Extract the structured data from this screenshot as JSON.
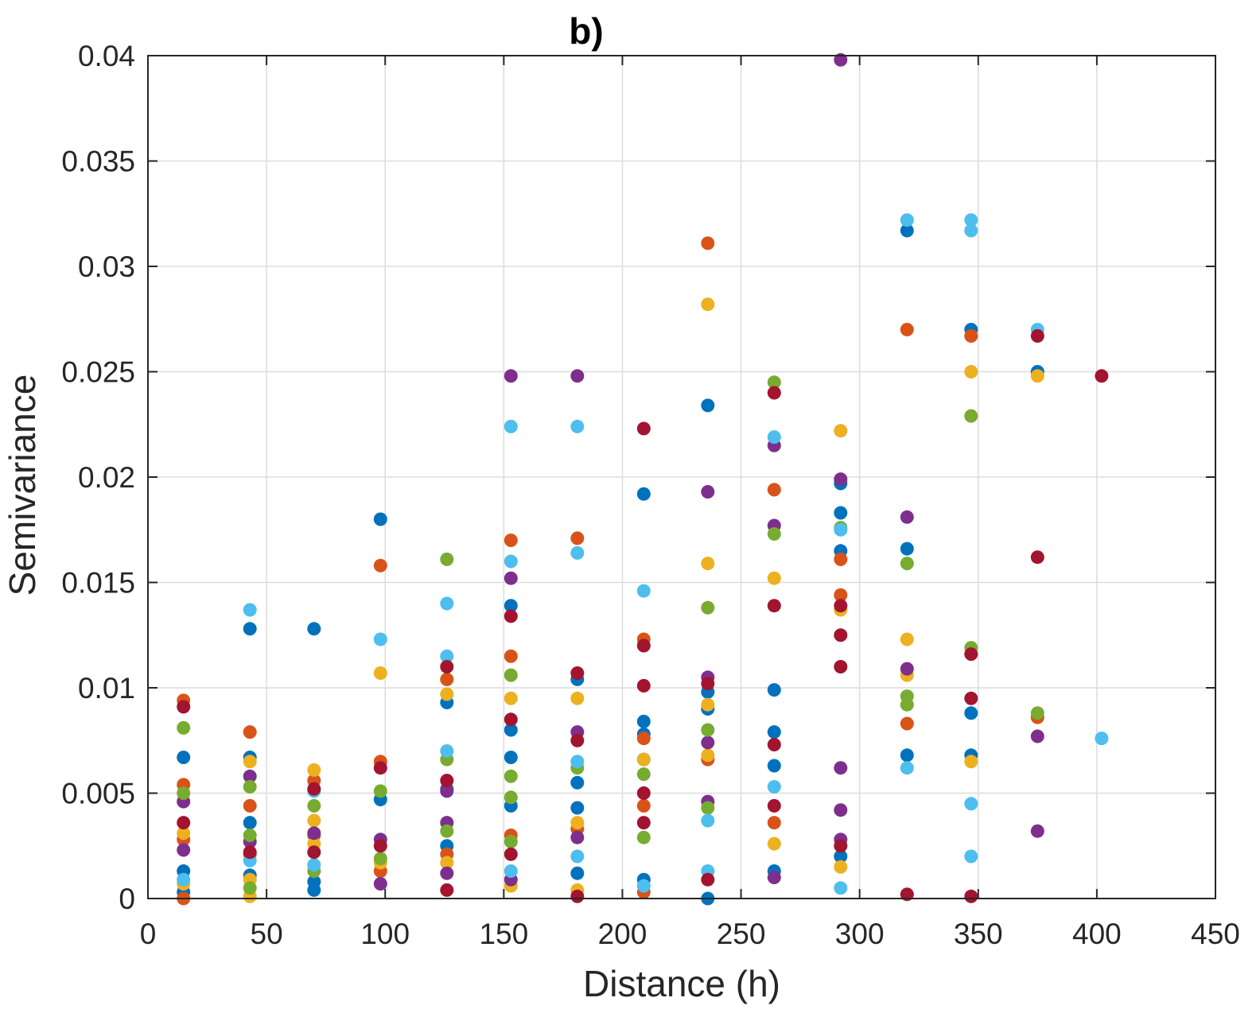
{
  "chart_data": {
    "type": "scatter",
    "title": "b)",
    "xlabel": "Distance (h)",
    "ylabel": "Semivariance",
    "xlim": [
      0,
      450
    ],
    "ylim": [
      0,
      0.04
    ],
    "xticks": [
      0,
      50,
      100,
      150,
      200,
      250,
      300,
      350,
      400,
      450
    ],
    "yticks": [
      0,
      0.005,
      0.01,
      0.015,
      0.02,
      0.025,
      0.03,
      0.035,
      0.04
    ],
    "xtick_labels": [
      "0",
      "50",
      "100",
      "150",
      "200",
      "250",
      "300",
      "350",
      "400",
      "450"
    ],
    "ytick_labels": [
      "0",
      "0.005",
      "0.01",
      "0.015",
      "0.02",
      "0.025",
      "0.03",
      "0.035",
      "0.04"
    ],
    "grid": true,
    "legend": "none",
    "series": [
      {
        "color": "#0072BD",
        "points": [
          [
            15,
            0.0067
          ],
          [
            15,
            0.0013
          ],
          [
            15,
            0.0003
          ],
          [
            43,
            0.0128
          ],
          [
            43,
            0.0067
          ],
          [
            43,
            0.0036
          ],
          [
            43,
            0.0011
          ],
          [
            70,
            0.0128
          ],
          [
            70,
            0.0008
          ],
          [
            70,
            0.0004
          ],
          [
            98,
            0.018
          ],
          [
            98,
            0.0047
          ],
          [
            126,
            0.0093
          ],
          [
            126,
            0.0052
          ],
          [
            126,
            0.0025
          ],
          [
            153,
            0.0139
          ],
          [
            153,
            0.008
          ],
          [
            153,
            0.0067
          ],
          [
            153,
            0.0044
          ],
          [
            181,
            0.0104
          ],
          [
            181,
            0.0055
          ],
          [
            181,
            0.0043
          ],
          [
            181,
            0.0012
          ],
          [
            209,
            0.0192
          ],
          [
            209,
            0.0084
          ],
          [
            209,
            0.0078
          ],
          [
            209,
            0.0066
          ],
          [
            209,
            0.0009
          ],
          [
            236,
            0.0234
          ],
          [
            236,
            0.0098
          ],
          [
            236,
            0.009
          ],
          [
            236,
            0.0
          ],
          [
            264,
            0.0099
          ],
          [
            264,
            0.0079
          ],
          [
            264,
            0.0063
          ],
          [
            264,
            0.0013
          ],
          [
            292,
            0.0197
          ],
          [
            292,
            0.0183
          ],
          [
            292,
            0.0165
          ],
          [
            292,
            0.002
          ],
          [
            320,
            0.0317
          ],
          [
            320,
            0.0166
          ],
          [
            320,
            0.0068
          ],
          [
            347,
            0.027
          ],
          [
            347,
            0.0088
          ],
          [
            347,
            0.0068
          ],
          [
            375,
            0.025
          ]
        ]
      },
      {
        "color": "#D95319",
        "points": [
          [
            15,
            0.0094
          ],
          [
            15,
            0.0054
          ],
          [
            15,
            0.0028
          ],
          [
            15,
            0.0
          ],
          [
            43,
            0.0079
          ],
          [
            43,
            0.0044
          ],
          [
            43,
            0.0021
          ],
          [
            70,
            0.0056
          ],
          [
            70,
            0.003
          ],
          [
            98,
            0.0158
          ],
          [
            98,
            0.0065
          ],
          [
            98,
            0.0013
          ],
          [
            126,
            0.0104
          ],
          [
            126,
            0.0021
          ],
          [
            153,
            0.017
          ],
          [
            153,
            0.0115
          ],
          [
            153,
            0.003
          ],
          [
            181,
            0.0171
          ],
          [
            181,
            0.0033
          ],
          [
            209,
            0.0123
          ],
          [
            209,
            0.0076
          ],
          [
            209,
            0.0044
          ],
          [
            209,
            0.0003
          ],
          [
            236,
            0.0311
          ],
          [
            236,
            0.0066
          ],
          [
            264,
            0.0194
          ],
          [
            264,
            0.0036
          ],
          [
            292,
            0.0161
          ],
          [
            292,
            0.0144
          ],
          [
            320,
            0.027
          ],
          [
            320,
            0.0083
          ],
          [
            347,
            0.0267
          ],
          [
            375,
            0.0086
          ]
        ]
      },
      {
        "color": "#EDB120",
        "points": [
          [
            15,
            0.0031
          ],
          [
            15,
            0.0007
          ],
          [
            43,
            0.0065
          ],
          [
            43,
            0.0009
          ],
          [
            43,
            0.0001
          ],
          [
            70,
            0.0061
          ],
          [
            70,
            0.0037
          ],
          [
            70,
            0.0026
          ],
          [
            98,
            0.0107
          ],
          [
            98,
            0.0017
          ],
          [
            126,
            0.0097
          ],
          [
            126,
            0.0017
          ],
          [
            153,
            0.0095
          ],
          [
            153,
            0.0006
          ],
          [
            181,
            0.0095
          ],
          [
            181,
            0.0036
          ],
          [
            181,
            0.0004
          ],
          [
            209,
            0.0066
          ],
          [
            236,
            0.0282
          ],
          [
            236,
            0.0159
          ],
          [
            236,
            0.0092
          ],
          [
            236,
            0.0068
          ],
          [
            264,
            0.0152
          ],
          [
            264,
            0.0026
          ],
          [
            292,
            0.0222
          ],
          [
            292,
            0.0137
          ],
          [
            292,
            0.0015
          ],
          [
            320,
            0.0123
          ],
          [
            320,
            0.0106
          ],
          [
            347,
            0.025
          ],
          [
            347,
            0.0065
          ],
          [
            375,
            0.0248
          ]
        ]
      },
      {
        "color": "#7E2F8E",
        "points": [
          [
            15,
            0.0046
          ],
          [
            15,
            0.0023
          ],
          [
            43,
            0.0058
          ],
          [
            43,
            0.0027
          ],
          [
            70,
            0.0031
          ],
          [
            98,
            0.0028
          ],
          [
            98,
            0.0007
          ],
          [
            126,
            0.0051
          ],
          [
            126,
            0.0036
          ],
          [
            126,
            0.0012
          ],
          [
            153,
            0.0248
          ],
          [
            153,
            0.0152
          ],
          [
            153,
            0.0009
          ],
          [
            181,
            0.0248
          ],
          [
            181,
            0.0079
          ],
          [
            181,
            0.0029
          ],
          [
            236,
            0.0193
          ],
          [
            236,
            0.0105
          ],
          [
            236,
            0.0074
          ],
          [
            236,
            0.0046
          ],
          [
            264,
            0.0215
          ],
          [
            264,
            0.0177
          ],
          [
            264,
            0.001
          ],
          [
            292,
            0.0398
          ],
          [
            292,
            0.0199
          ],
          [
            292,
            0.0062
          ],
          [
            292,
            0.0042
          ],
          [
            292,
            0.0028
          ],
          [
            320,
            0.0181
          ],
          [
            320,
            0.0109
          ],
          [
            375,
            0.0077
          ],
          [
            375,
            0.0032
          ]
        ]
      },
      {
        "color": "#77AC30",
        "points": [
          [
            15,
            0.0081
          ],
          [
            15,
            0.005
          ],
          [
            43,
            0.0053
          ],
          [
            43,
            0.003
          ],
          [
            43,
            0.0005
          ],
          [
            70,
            0.0044
          ],
          [
            70,
            0.0013
          ],
          [
            98,
            0.0051
          ],
          [
            98,
            0.0019
          ],
          [
            126,
            0.0161
          ],
          [
            126,
            0.0066
          ],
          [
            126,
            0.0032
          ],
          [
            153,
            0.0106
          ],
          [
            153,
            0.0058
          ],
          [
            153,
            0.0048
          ],
          [
            153,
            0.0027
          ],
          [
            181,
            0.0062
          ],
          [
            209,
            0.0059
          ],
          [
            209,
            0.0029
          ],
          [
            236,
            0.0138
          ],
          [
            236,
            0.008
          ],
          [
            236,
            0.0043
          ],
          [
            264,
            0.0245
          ],
          [
            264,
            0.0173
          ],
          [
            292,
            0.0176
          ],
          [
            320,
            0.0159
          ],
          [
            320,
            0.0096
          ],
          [
            320,
            0.0092
          ],
          [
            347,
            0.0229
          ],
          [
            347,
            0.0119
          ],
          [
            375,
            0.0088
          ]
        ]
      },
      {
        "color": "#4DBEEE",
        "points": [
          [
            15,
            0.0009
          ],
          [
            43,
            0.0137
          ],
          [
            43,
            0.0018
          ],
          [
            70,
            0.0051
          ],
          [
            70,
            0.0016
          ],
          [
            98,
            0.0123
          ],
          [
            126,
            0.014
          ],
          [
            126,
            0.0115
          ],
          [
            126,
            0.007
          ],
          [
            153,
            0.0224
          ],
          [
            153,
            0.016
          ],
          [
            153,
            0.0013
          ],
          [
            181,
            0.0224
          ],
          [
            181,
            0.0164
          ],
          [
            181,
            0.0065
          ],
          [
            181,
            0.002
          ],
          [
            209,
            0.0146
          ],
          [
            209,
            0.0006
          ],
          [
            236,
            0.0037
          ],
          [
            236,
            0.0013
          ],
          [
            264,
            0.0219
          ],
          [
            264,
            0.0053
          ],
          [
            292,
            0.0175
          ],
          [
            292,
            0.0005
          ],
          [
            320,
            0.0322
          ],
          [
            320,
            0.0062
          ],
          [
            347,
            0.0322
          ],
          [
            347,
            0.0317
          ],
          [
            347,
            0.0045
          ],
          [
            347,
            0.002
          ],
          [
            375,
            0.027
          ],
          [
            402,
            0.0076
          ]
        ]
      },
      {
        "color": "#A2142F",
        "points": [
          [
            15,
            0.0091
          ],
          [
            15,
            0.0036
          ],
          [
            43,
            0.0022
          ],
          [
            70,
            0.0052
          ],
          [
            70,
            0.0022
          ],
          [
            98,
            0.0062
          ],
          [
            98,
            0.0025
          ],
          [
            126,
            0.011
          ],
          [
            126,
            0.0056
          ],
          [
            126,
            0.0004
          ],
          [
            153,
            0.0134
          ],
          [
            153,
            0.0085
          ],
          [
            153,
            0.0021
          ],
          [
            181,
            0.0107
          ],
          [
            181,
            0.0075
          ],
          [
            181,
            0.0001
          ],
          [
            209,
            0.0223
          ],
          [
            209,
            0.012
          ],
          [
            209,
            0.0101
          ],
          [
            209,
            0.005
          ],
          [
            209,
            0.0036
          ],
          [
            236,
            0.0102
          ],
          [
            236,
            0.0009
          ],
          [
            264,
            0.024
          ],
          [
            264,
            0.0139
          ],
          [
            264,
            0.0073
          ],
          [
            264,
            0.0044
          ],
          [
            292,
            0.0139
          ],
          [
            292,
            0.0125
          ],
          [
            292,
            0.011
          ],
          [
            292,
            0.0025
          ],
          [
            320,
            0.0002
          ],
          [
            347,
            0.0116
          ],
          [
            347,
            0.0095
          ],
          [
            347,
            0.0001
          ],
          [
            375,
            0.0267
          ],
          [
            375,
            0.0162
          ],
          [
            402,
            0.0248
          ]
        ]
      }
    ]
  }
}
